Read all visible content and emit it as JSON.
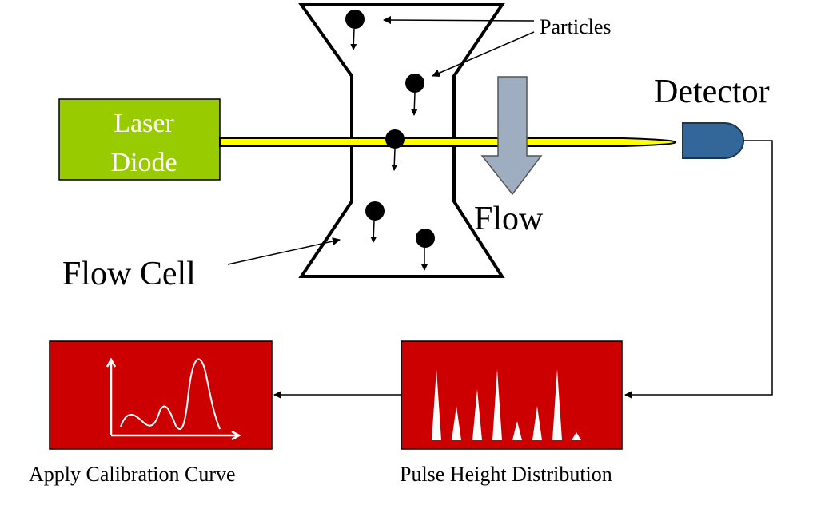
{
  "labels": {
    "particles": "Particles",
    "detector": "Detector",
    "laser_line1": "Laser",
    "laser_line2": "Diode",
    "flow": "Flow",
    "flow_cell": "Flow Cell",
    "pulse_height": "Pulse Height Distribution",
    "calibration": "Apply Calibration Curve"
  },
  "colors": {
    "laser_box": "#99cc00",
    "laser_beam": "#ffff00",
    "detector": "#336699",
    "flow_arrow": "#9eaec0",
    "process_box": "#cc0000"
  }
}
